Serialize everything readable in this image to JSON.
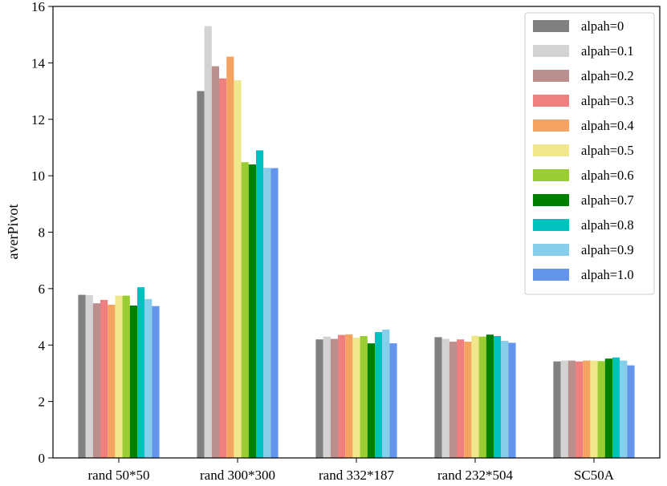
{
  "chart_data": {
    "type": "bar",
    "title": "",
    "xlabel": "",
    "ylabel": "averPivot",
    "ylim": [
      0,
      16
    ],
    "yticks": [
      0,
      2,
      4,
      6,
      8,
      10,
      12,
      14,
      16
    ],
    "grid": false,
    "legend_position": "top-right",
    "categories": [
      "rand 50*50",
      "rand 300*300",
      "rand 332*187",
      "rand 232*504",
      "SC50A"
    ],
    "series": [
      {
        "name": "alpah=0",
        "color": "#808080",
        "values": [
          5.78,
          13.0,
          4.2,
          4.28,
          3.42
        ]
      },
      {
        "name": "alpah=0.1",
        "color": "#d3d3d3",
        "values": [
          5.77,
          15.3,
          4.3,
          4.22,
          3.45
        ]
      },
      {
        "name": "alpah=0.2",
        "color": "#bc8f8f",
        "values": [
          5.48,
          13.88,
          4.22,
          4.12,
          3.45
        ]
      },
      {
        "name": "alpah=0.3",
        "color": "#f08080",
        "values": [
          5.6,
          13.45,
          4.36,
          4.2,
          3.42
        ]
      },
      {
        "name": "alpah=0.4",
        "color": "#f4a460",
        "values": [
          5.43,
          14.22,
          4.38,
          4.12,
          3.45
        ]
      },
      {
        "name": "alpah=0.5",
        "color": "#f0e68c",
        "values": [
          5.75,
          13.38,
          4.26,
          4.33,
          3.45
        ]
      },
      {
        "name": "alpah=0.6",
        "color": "#9acd32",
        "values": [
          5.75,
          10.48,
          4.32,
          4.3,
          3.43
        ]
      },
      {
        "name": "alpah=0.7",
        "color": "#008000",
        "values": [
          5.4,
          10.4,
          4.06,
          4.37,
          3.52
        ]
      },
      {
        "name": "alpah=0.8",
        "color": "#00c0c0",
        "values": [
          6.05,
          10.9,
          4.46,
          4.32,
          3.56
        ]
      },
      {
        "name": "alpah=0.9",
        "color": "#87ceeb",
        "values": [
          5.63,
          10.28,
          4.55,
          4.15,
          3.45
        ]
      },
      {
        "name": "alpah=1.0",
        "color": "#6495ed",
        "values": [
          5.38,
          10.27,
          4.06,
          4.08,
          3.28
        ]
      }
    ]
  }
}
